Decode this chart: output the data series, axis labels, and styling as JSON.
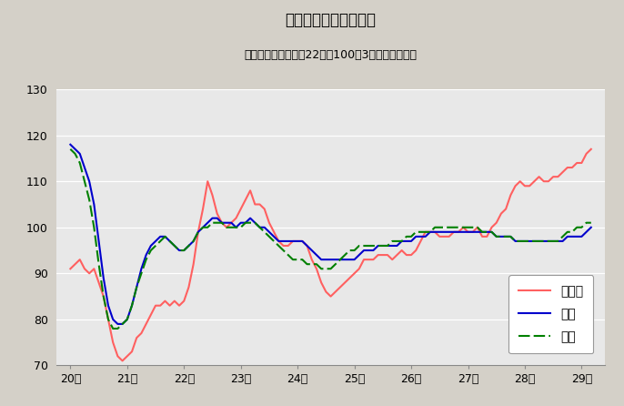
{
  "title": "鉱工業生産指数の推移",
  "subtitle": "（季節調整済、平成22年＝100、3ヶ月移動平均）",
  "xlabels": [
    "20年",
    "21年",
    "22年",
    "23年",
    "24年",
    "25年",
    "26年",
    "27年",
    "28年",
    "29年"
  ],
  "ylim": [
    70,
    130
  ],
  "yticks": [
    70,
    80,
    90,
    100,
    110,
    120,
    130
  ],
  "fig_bg": "#d4d0c8",
  "plot_bg": "#e8e8e8",
  "legend_labels": [
    "鳥取県",
    "中国",
    "全国"
  ],
  "tottori_color": "#ff6060",
  "chugoku_color": "#0000cc",
  "zenkoku_color": "#008000",
  "tottori": [
    91,
    92,
    93,
    91,
    90,
    91,
    88,
    85,
    80,
    75,
    72,
    71,
    72,
    73,
    76,
    77,
    79,
    81,
    83,
    83,
    84,
    83,
    84,
    83,
    84,
    87,
    92,
    99,
    104,
    110,
    107,
    103,
    101,
    100,
    101,
    102,
    104,
    106,
    108,
    105,
    105,
    104,
    101,
    99,
    97,
    96,
    96,
    97,
    97,
    97,
    96,
    93,
    91,
    88,
    86,
    85,
    86,
    87,
    88,
    89,
    90,
    91,
    93,
    93,
    93,
    94,
    94,
    94,
    93,
    94,
    95,
    94,
    94,
    95,
    97,
    99,
    99,
    99,
    98,
    98,
    98,
    99,
    99,
    100,
    99,
    99,
    100,
    98,
    98,
    100,
    101,
    103,
    104,
    107,
    109,
    110,
    109,
    109,
    110,
    111,
    110,
    110,
    111,
    111,
    112,
    113,
    113,
    114,
    114,
    116,
    117
  ],
  "chugoku": [
    118,
    117,
    116,
    113,
    110,
    105,
    97,
    89,
    83,
    80,
    79,
    79,
    80,
    83,
    87,
    91,
    94,
    96,
    97,
    98,
    98,
    97,
    96,
    95,
    95,
    96,
    97,
    99,
    100,
    101,
    102,
    102,
    101,
    101,
    101,
    100,
    101,
    101,
    102,
    101,
    100,
    100,
    99,
    98,
    97,
    97,
    97,
    97,
    97,
    97,
    96,
    95,
    94,
    93,
    93,
    93,
    93,
    93,
    93,
    93,
    93,
    94,
    95,
    95,
    95,
    96,
    96,
    96,
    96,
    96,
    97,
    97,
    97,
    98,
    98,
    98,
    99,
    99,
    99,
    99,
    99,
    99,
    99,
    99,
    99,
    99,
    99,
    99,
    99,
    99,
    98,
    98,
    98,
    98,
    97,
    97,
    97,
    97,
    97,
    97,
    97,
    97,
    97,
    97,
    97,
    98,
    98,
    98,
    98,
    99,
    100
  ],
  "zenkoku": [
    117,
    116,
    114,
    110,
    106,
    100,
    92,
    85,
    80,
    78,
    78,
    79,
    80,
    83,
    87,
    90,
    93,
    95,
    96,
    97,
    98,
    97,
    96,
    95,
    95,
    96,
    97,
    99,
    100,
    100,
    101,
    101,
    101,
    100,
    100,
    100,
    100,
    101,
    101,
    101,
    100,
    99,
    98,
    97,
    96,
    95,
    94,
    93,
    93,
    93,
    92,
    92,
    92,
    91,
    91,
    91,
    92,
    93,
    94,
    95,
    95,
    96,
    96,
    96,
    96,
    96,
    96,
    96,
    97,
    97,
    97,
    98,
    98,
    99,
    99,
    99,
    99,
    100,
    100,
    100,
    100,
    100,
    100,
    100,
    100,
    100,
    100,
    99,
    99,
    99,
    98,
    98,
    98,
    98,
    97,
    97,
    97,
    97,
    97,
    97,
    97,
    97,
    97,
    97,
    98,
    99,
    99,
    100,
    100,
    101,
    101
  ]
}
